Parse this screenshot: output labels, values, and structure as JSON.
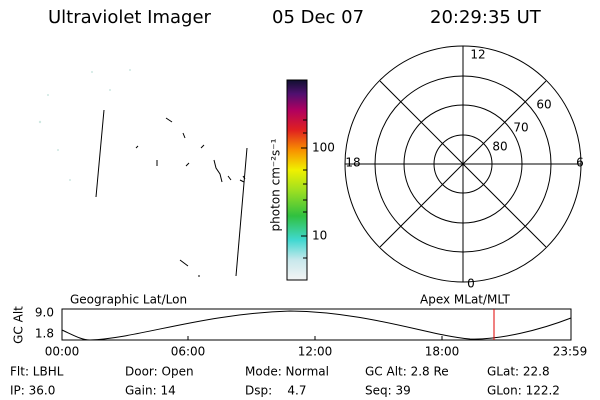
{
  "header": {
    "instrument": "Ultraviolet Imager",
    "date": "05 Dec 07",
    "time": "20:29:35 UT"
  },
  "colorbar": {
    "label": "photon cm⁻²s⁻¹",
    "ticks": [
      "100",
      "10"
    ]
  },
  "polar": {
    "mlt_labels": [
      "12",
      "6",
      "0",
      "18"
    ],
    "lat_labels": [
      "60",
      "70",
      "80"
    ]
  },
  "altitude_plot": {
    "ylabel": "GC Alt",
    "yticks": [
      "9.0",
      "1.8"
    ],
    "left_title": "Geographic Lat/Lon",
    "right_title": "Apex MLat/MLT",
    "xticks": [
      "00:00",
      "06:00",
      "12:00",
      "18:00",
      "23:59"
    ]
  },
  "footer": {
    "rows": [
      [
        "Flt: LBHL",
        "Door: Open",
        "Mode: Normal",
        "GC Alt: 2.8 Re",
        "GLat: 22.8"
      ],
      [
        "IP: 36.0",
        "Gain: 14",
        "Dsp:    4.7",
        "Seq: 39",
        "GLon: 122.2"
      ]
    ]
  }
}
